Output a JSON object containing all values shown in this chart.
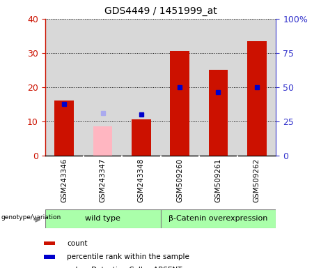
{
  "title": "GDS4449 / 1451999_at",
  "samples": [
    "GSM243346",
    "GSM243347",
    "GSM243348",
    "GSM509260",
    "GSM509261",
    "GSM509262"
  ],
  "count_values": [
    16.0,
    null,
    10.5,
    30.5,
    25.0,
    33.5
  ],
  "count_absent_values": [
    null,
    8.5,
    null,
    null,
    null,
    null
  ],
  "rank_values": [
    15.0,
    null,
    12.0,
    20.0,
    18.5,
    20.0
  ],
  "rank_absent_values": [
    null,
    12.5,
    null,
    null,
    null,
    null
  ],
  "groups": [
    {
      "label": "wild type",
      "indices": [
        0,
        1,
        2
      ],
      "color": "#aaffaa"
    },
    {
      "label": "β-Catenin overexpression",
      "indices": [
        3,
        4,
        5
      ],
      "color": "#aaffaa"
    }
  ],
  "ylim_left": [
    0,
    40
  ],
  "ylim_right": [
    0,
    100
  ],
  "yticks_left": [
    0,
    10,
    20,
    30,
    40
  ],
  "yticks_right": [
    0,
    25,
    50,
    75,
    100
  ],
  "yticklabels_right": [
    "0",
    "25",
    "50",
    "75",
    "100%"
  ],
  "bar_color_count": "#cc1100",
  "bar_color_count_absent": "#ffb6c1",
  "marker_color_rank": "#0000cc",
  "marker_color_rank_absent": "#aaaaee",
  "plot_bg_color": "#d8d8d8",
  "label_bg_color": "#cccccc",
  "left_tick_color": "#cc1100",
  "right_tick_color": "#3333cc",
  "bar_width": 0.5
}
